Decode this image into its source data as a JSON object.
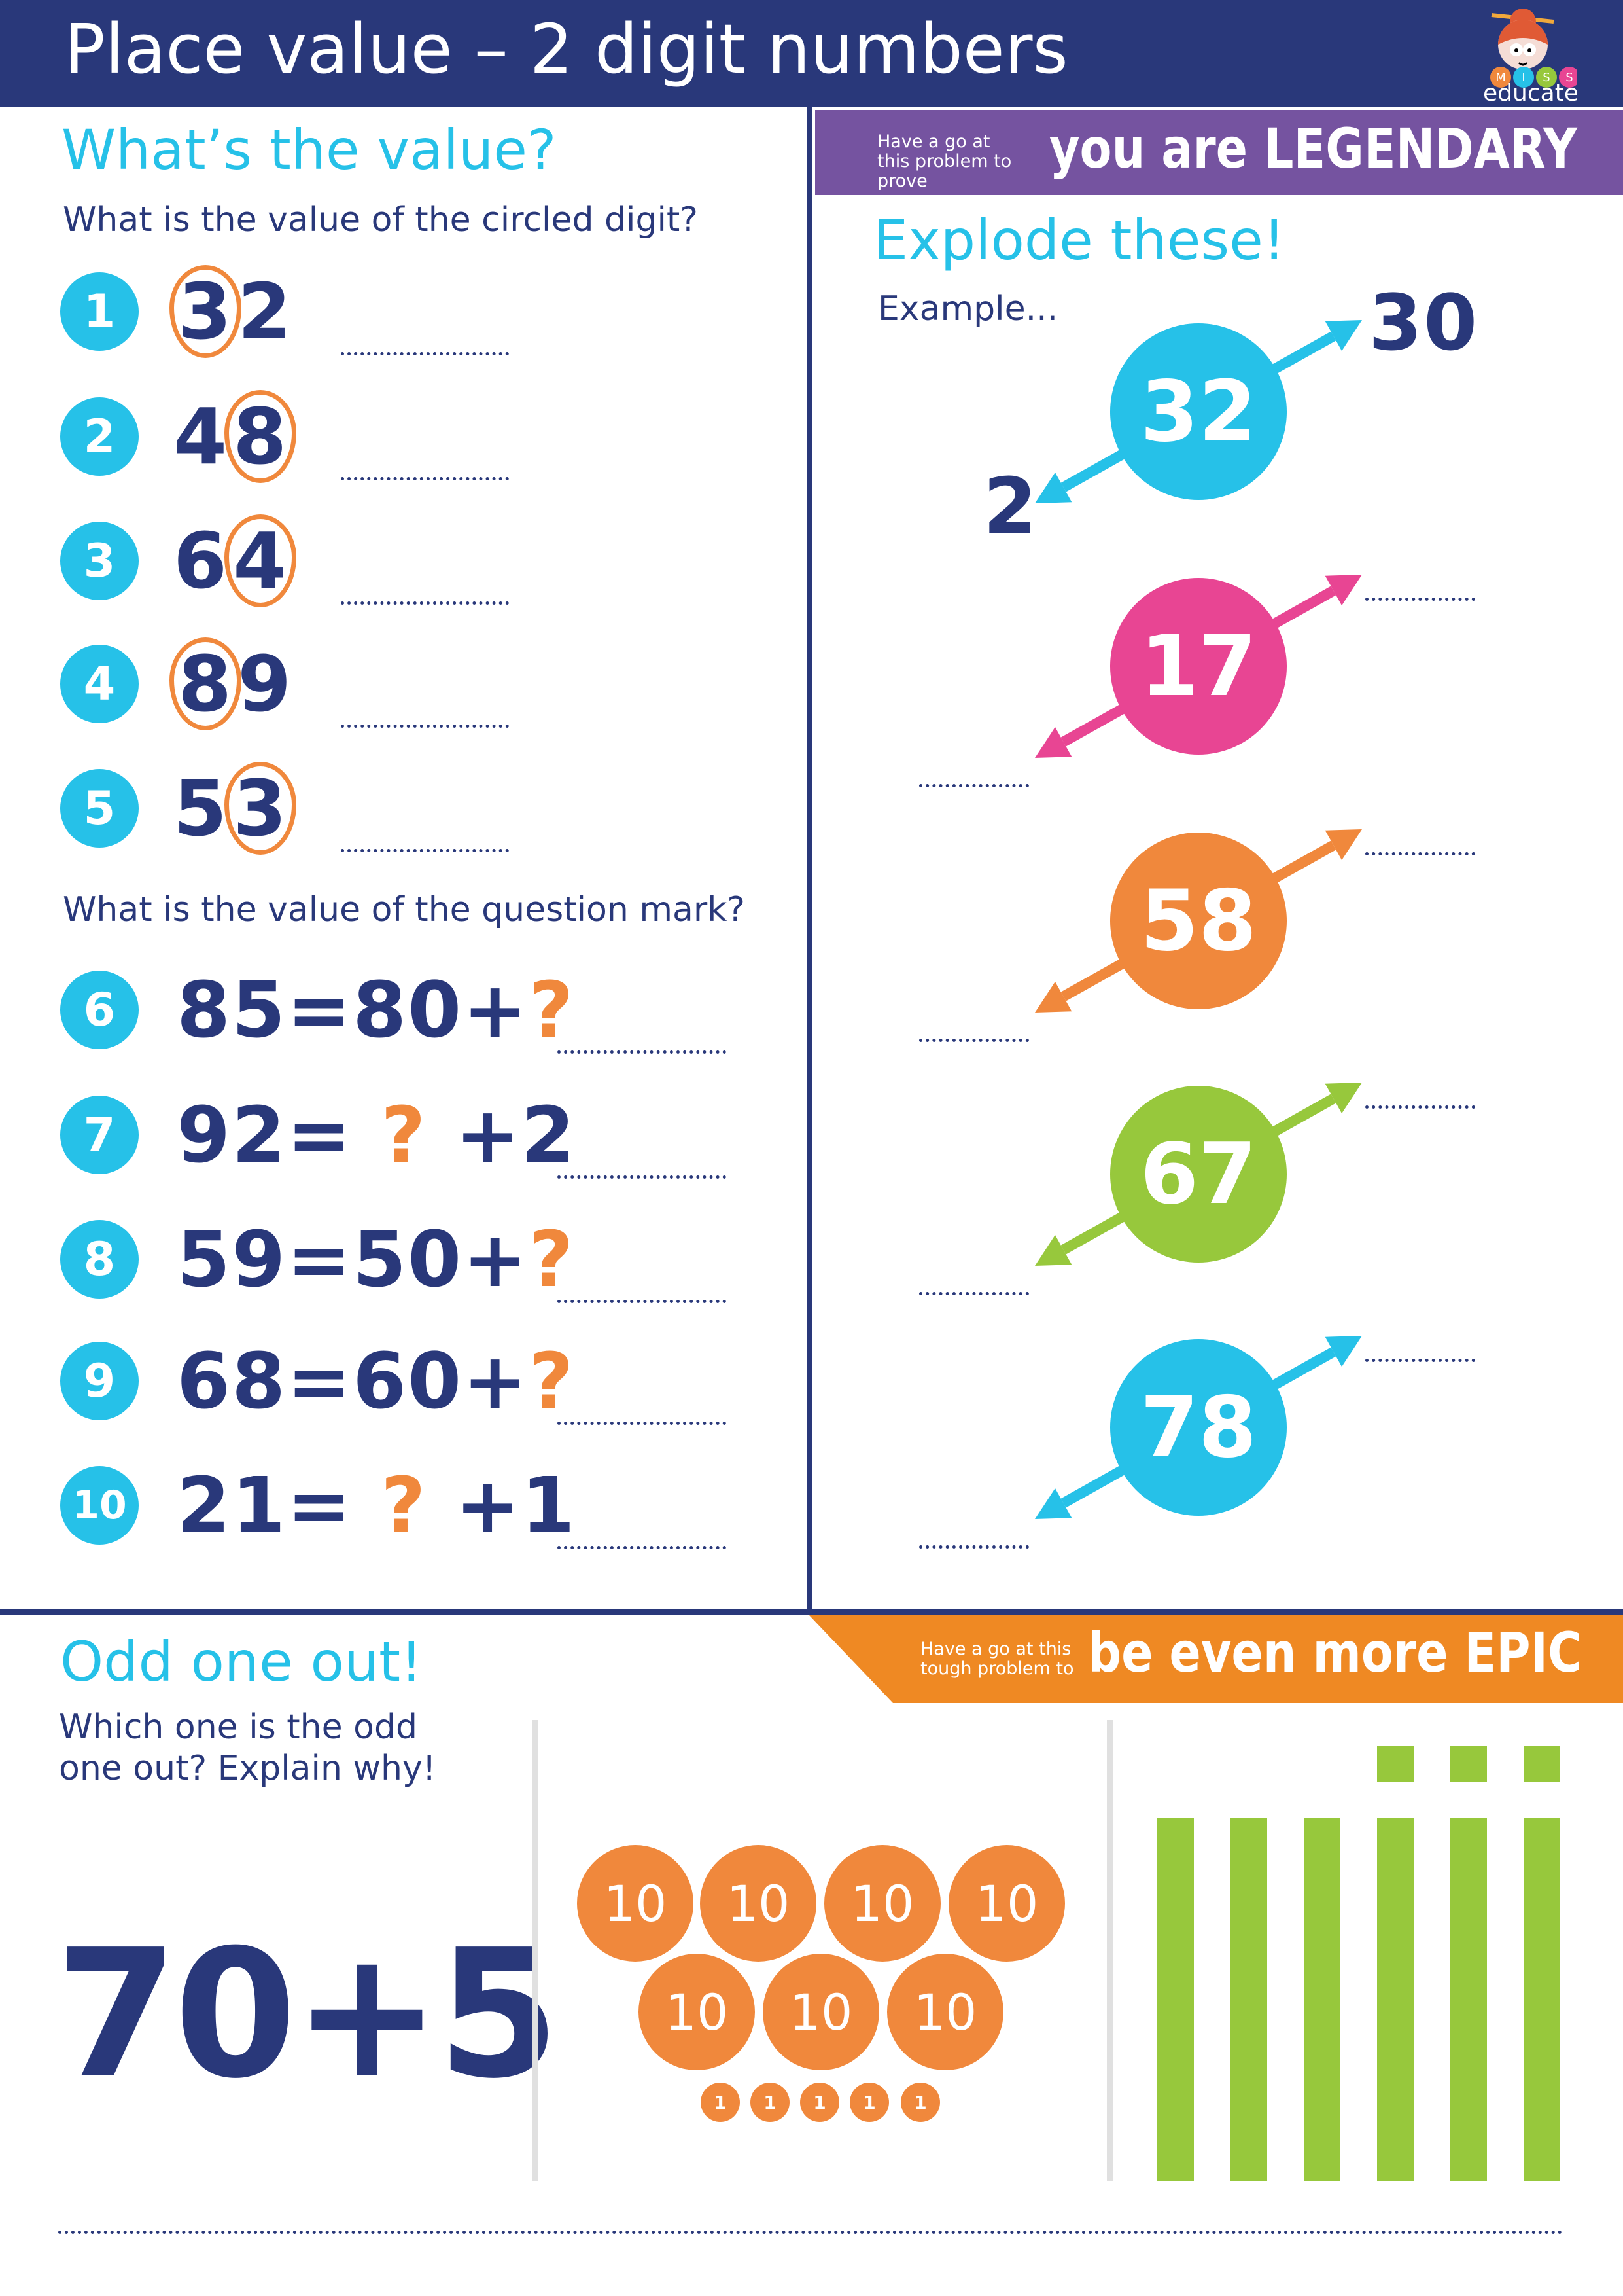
{
  "header": {
    "title": "Place value – 2 digit numbers",
    "logo_letters": [
      "M",
      "I",
      "S",
      "S"
    ],
    "logo_word": "educate"
  },
  "colors": {
    "navy": "#29387a",
    "cyan": "#26c1e8",
    "orange": "#f0883c",
    "pink": "#e84593",
    "green": "#97c83c",
    "purple": "#7553a0",
    "banner_orange": "#ef8923"
  },
  "left": {
    "heading": "What’s the value?",
    "subtitle1": "What is the value of the circled digit?",
    "circled": [
      {
        "n": "1",
        "digits": [
          "3",
          "2"
        ],
        "circled": 0
      },
      {
        "n": "2",
        "digits": [
          "4",
          "8"
        ],
        "circled": 1
      },
      {
        "n": "3",
        "digits": [
          "6",
          "4"
        ],
        "circled": 1
      },
      {
        "n": "4",
        "digits": [
          "8",
          "9"
        ],
        "circled": 0
      },
      {
        "n": "5",
        "digits": [
          "5",
          "3"
        ],
        "circled": 1
      }
    ],
    "subtitle2": "What is the value of the question mark?",
    "equations": [
      {
        "n": "6",
        "parts": [
          "85=80+",
          "?",
          ""
        ]
      },
      {
        "n": "7",
        "parts": [
          "92= ",
          "?",
          " +2"
        ]
      },
      {
        "n": "8",
        "parts": [
          "59=50+",
          "?",
          ""
        ]
      },
      {
        "n": "9",
        "parts": [
          "68=60+",
          "?",
          ""
        ]
      },
      {
        "n": "10",
        "parts": [
          "21= ",
          "?",
          " +1"
        ]
      }
    ]
  },
  "legendary": {
    "small": "Have a go at this problem to prove",
    "big": "you are LEGENDARY"
  },
  "explode": {
    "heading": "Explode these!",
    "example_label": "Example...",
    "example": {
      "number": "32",
      "tens": "30",
      "ones": "2"
    },
    "items": [
      {
        "number": "17",
        "color": "#e84593"
      },
      {
        "number": "58",
        "color": "#f0883c"
      },
      {
        "number": "67",
        "color": "#97c83c"
      },
      {
        "number": "78",
        "color": "#26c1e8"
      }
    ]
  },
  "odd": {
    "heading": "Odd one out!",
    "question": "Which one is the odd one out? Explain why!",
    "expression": "70+5",
    "tens_label": "10",
    "tens_count": 7,
    "ones_label": "1",
    "ones_count": 5,
    "tens_rods": 6,
    "ones_cubes": 3
  },
  "epic": {
    "small": "Have a go at this tough problem to",
    "big": "be even more EPIC"
  }
}
